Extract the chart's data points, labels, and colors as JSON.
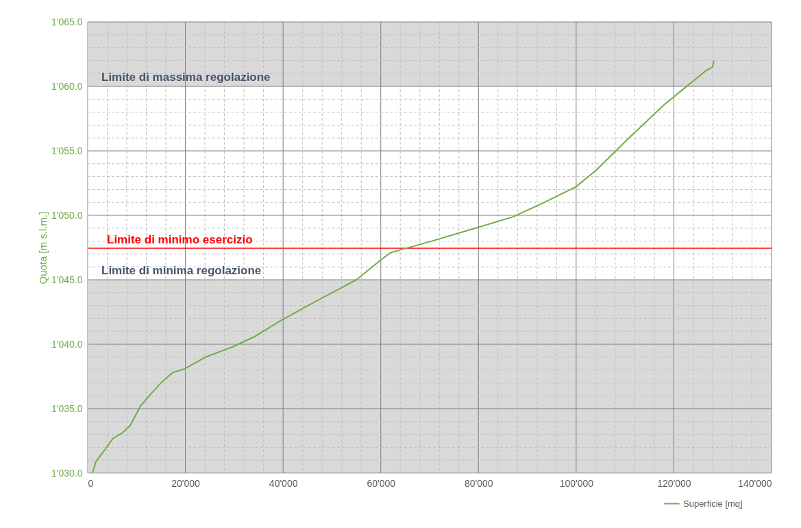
{
  "chart_data": {
    "type": "line",
    "ylabel": "Quota [m s.l.m.]",
    "x": [
      980,
      1680,
      3090,
      5190,
      7010,
      8700,
      10800,
      12600,
      15000,
      17400,
      19900,
      24100,
      29700,
      34200,
      39800,
      46600,
      55000,
      59900,
      62000,
      64800,
      70400,
      80200,
      87200,
      92900,
      99900,
      104100,
      111100,
      118100,
      122300,
      126500,
      127900,
      128200
    ],
    "series": [
      {
        "name": "Superficie [mq]",
        "color": "#70ad47",
        "values": [
          1030.0,
          1030.9,
          1031.6,
          1032.7,
          1033.1,
          1033.7,
          1035.2,
          1036.0,
          1037.0,
          1037.8,
          1038.1,
          1039.0,
          1039.8,
          1040.6,
          1041.9,
          1043.3,
          1045.0,
          1046.5,
          1047.1,
          1047.4,
          1048.0,
          1049.1,
          1049.9,
          1050.9,
          1052.2,
          1053.5,
          1056.1,
          1058.6,
          1059.9,
          1061.2,
          1061.5,
          1062.0
        ]
      }
    ],
    "xlim": [
      0,
      140000
    ],
    "xticks": [
      {
        "value": 0,
        "label": "0"
      },
      {
        "value": 4000,
        "label": null
      },
      {
        "value": 8000,
        "label": null
      },
      {
        "value": 12000,
        "label": null
      },
      {
        "value": 16000,
        "label": null
      },
      {
        "value": 20000,
        "label": "20'000"
      },
      {
        "value": 24000,
        "label": null
      },
      {
        "value": 28000,
        "label": null
      },
      {
        "value": 32000,
        "label": null
      },
      {
        "value": 36000,
        "label": null
      },
      {
        "value": 40000,
        "label": "40'000"
      },
      {
        "value": 44000,
        "label": null
      },
      {
        "value": 48000,
        "label": null
      },
      {
        "value": 52000,
        "label": null
      },
      {
        "value": 56000,
        "label": null
      },
      {
        "value": 60000,
        "label": "60'000"
      },
      {
        "value": 64000,
        "label": null
      },
      {
        "value": 68000,
        "label": null
      },
      {
        "value": 72000,
        "label": null
      },
      {
        "value": 76000,
        "label": null
      },
      {
        "value": 80000,
        "label": "80'000"
      },
      {
        "value": 84000,
        "label": null
      },
      {
        "value": 88000,
        "label": null
      },
      {
        "value": 92000,
        "label": null
      },
      {
        "value": 96000,
        "label": null
      },
      {
        "value": 100000,
        "label": "100'000"
      },
      {
        "value": 104000,
        "label": null
      },
      {
        "value": 108000,
        "label": null
      },
      {
        "value": 112000,
        "label": null
      },
      {
        "value": 116000,
        "label": null
      },
      {
        "value": 120000,
        "label": "120'000"
      },
      {
        "value": 124000,
        "label": null
      },
      {
        "value": 128000,
        "label": null
      },
      {
        "value": 132000,
        "label": null
      },
      {
        "value": 136000,
        "label": null
      },
      {
        "value": 140000,
        "label": "140'000"
      }
    ],
    "ylim": [
      1030,
      1065
    ],
    "yticks": [
      {
        "value": 1030,
        "label": "1'030.0"
      },
      {
        "value": 1031,
        "label": null
      },
      {
        "value": 1032,
        "label": null
      },
      {
        "value": 1033,
        "label": null
      },
      {
        "value": 1034,
        "label": null
      },
      {
        "value": 1035,
        "label": "1'035.0"
      },
      {
        "value": 1036,
        "label": null
      },
      {
        "value": 1037,
        "label": null
      },
      {
        "value": 1038,
        "label": null
      },
      {
        "value": 1039,
        "label": null
      },
      {
        "value": 1040,
        "label": "1'040.0"
      },
      {
        "value": 1041,
        "label": null
      },
      {
        "value": 1042,
        "label": null
      },
      {
        "value": 1043,
        "label": null
      },
      {
        "value": 1044,
        "label": null
      },
      {
        "value": 1045,
        "label": "1'045.0"
      },
      {
        "value": 1046,
        "label": null
      },
      {
        "value": 1047,
        "label": null
      },
      {
        "value": 1048,
        "label": null
      },
      {
        "value": 1049,
        "label": null
      },
      {
        "value": 1050,
        "label": "1'050.0"
      },
      {
        "value": 1051,
        "label": null
      },
      {
        "value": 1052,
        "label": null
      },
      {
        "value": 1053,
        "label": null
      },
      {
        "value": 1054,
        "label": null
      },
      {
        "value": 1055,
        "label": "1'055.0"
      },
      {
        "value": 1056,
        "label": null
      },
      {
        "value": 1057,
        "label": null
      },
      {
        "value": 1058,
        "label": null
      },
      {
        "value": 1059,
        "label": null
      },
      {
        "value": 1060,
        "label": "1'060.0"
      },
      {
        "value": 1061,
        "label": null
      },
      {
        "value": 1062,
        "label": null
      },
      {
        "value": 1063,
        "label": null
      },
      {
        "value": 1064,
        "label": null
      },
      {
        "value": 1065,
        "label": "1'065.0"
      }
    ],
    "bands": [
      {
        "axis": "y",
        "from": 1060,
        "to": 1065,
        "label": "Limite di massima regolazione",
        "color": "#d9d9d9"
      },
      {
        "axis": "y",
        "from": 1030,
        "to": 1045,
        "label": "Limite di minima regolazione",
        "color": "#d9d9d9"
      }
    ],
    "ref_lines": [
      {
        "axis": "y",
        "value": 1047.45,
        "label": "Limite di minimo esercizio",
        "color": "#ff0000"
      }
    ],
    "grid": true,
    "legend": "bottom right",
    "line_style": "solid",
    "marker": "none"
  }
}
